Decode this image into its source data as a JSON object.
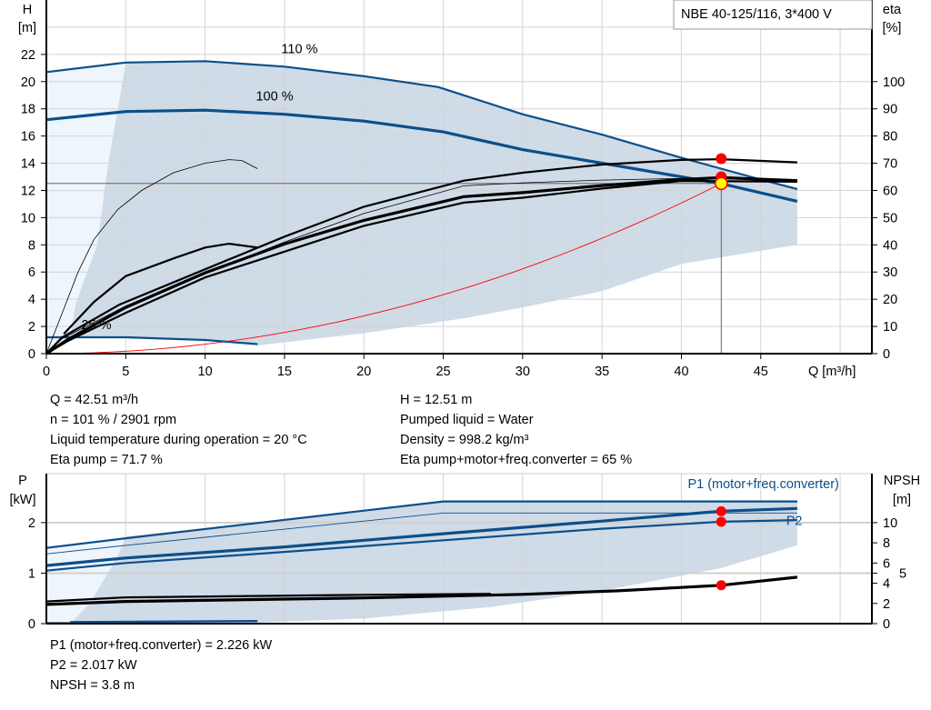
{
  "title_box": "NBE 40-125/116, 3*400 V",
  "colors": {
    "blue": "#0b4f8a",
    "band": "#cfdbe7",
    "band_light": "#eef5fc",
    "red": "#ff0000",
    "yellow": "#ffff00",
    "grid": "#d4d4d4"
  },
  "info_top": {
    "left": [
      "Q = 42.51 m³/h",
      "n = 101 % / 2901 rpm",
      "Liquid temperature during operation = 20 °C",
      "Eta pump = 71.7 %"
    ],
    "right": [
      "H = 12.51 m",
      "Pumped liquid = Water",
      "Density = 998.2 kg/m³",
      "Eta pump+motor+freq.converter = 65 %"
    ]
  },
  "info_bottom": [
    "P1 (motor+freq.converter) = 2.226 kW",
    "P2 = 2.017 kW",
    "NPSH = 3.8 m"
  ],
  "chart_data": [
    {
      "type": "line",
      "xlabel": "Q [m³/h]",
      "ylabel": [
        "H",
        "[m]"
      ],
      "y2label": [
        "eta",
        "[%]"
      ],
      "xlim": [
        0,
        52
      ],
      "ylim": [
        0,
        26
      ],
      "y2lim": [
        0,
        130
      ],
      "xticks": [
        0,
        5,
        10,
        15,
        20,
        25,
        30,
        35,
        40,
        45
      ],
      "yticks": [
        0,
        2,
        4,
        6,
        8,
        10,
        12,
        14,
        16,
        18,
        20,
        22
      ],
      "y2ticks": [
        0,
        10,
        20,
        30,
        40,
        50,
        60,
        70,
        80,
        90,
        100
      ],
      "grid": true,
      "curve_labels": [
        {
          "text": "110 %",
          "q": 14.8,
          "h": 22.1
        },
        {
          "text": "100 %",
          "q": 13.2,
          "h": 18.6
        },
        {
          "text": "25 %",
          "q": 2.2,
          "h": 1.8
        }
      ],
      "band": [
        [
          5,
          21.4
        ],
        [
          10,
          21.5
        ],
        [
          15,
          21.1
        ],
        [
          20,
          20.4
        ],
        [
          24.7,
          19.6
        ],
        [
          30,
          17.6
        ],
        [
          35,
          16.1
        ],
        [
          40,
          14.4
        ],
        [
          45,
          12.8
        ],
        [
          47.3,
          12.1
        ],
        [
          47.3,
          8.0
        ],
        [
          40,
          6.6
        ],
        [
          35,
          4.6
        ],
        [
          30,
          3.4
        ],
        [
          26.3,
          2.6
        ],
        [
          20,
          1.5
        ],
        [
          13.3,
          0.6
        ],
        [
          10,
          1.0
        ],
        [
          5,
          1.2
        ],
        [
          1.5,
          1.2
        ],
        [
          1.85,
          3.7
        ],
        [
          3.2,
          8
        ],
        [
          3.9,
          14
        ],
        [
          4.8,
          20
        ]
      ],
      "band_light": [
        [
          0,
          0
        ],
        [
          0,
          20.7
        ],
        [
          5,
          21.4
        ],
        [
          4.8,
          20
        ],
        [
          3.9,
          14
        ],
        [
          3.2,
          8
        ],
        [
          1.85,
          3.7
        ],
        [
          1.5,
          1.2
        ],
        [
          0.3,
          0.5
        ]
      ],
      "head_curves": [
        {
          "name": "110 %",
          "width": 2.2,
          "points": [
            [
              0,
              20.7
            ],
            [
              5,
              21.4
            ],
            [
              10,
              21.5
            ],
            [
              15,
              21.1
            ],
            [
              20,
              20.4
            ],
            [
              24.7,
              19.6
            ],
            [
              30,
              17.6
            ],
            [
              35,
              16.1
            ],
            [
              40,
              14.4
            ],
            [
              45,
              12.8
            ],
            [
              47.3,
              12.1
            ]
          ]
        },
        {
          "name": "100 %",
          "width": 3.2,
          "points": [
            [
              0,
              17.2
            ],
            [
              5,
              17.8
            ],
            [
              10,
              17.9
            ],
            [
              15,
              17.6
            ],
            [
              20,
              17.1
            ],
            [
              25,
              16.3
            ],
            [
              30,
              15.0
            ],
            [
              35,
              14.0
            ],
            [
              40,
              13.0
            ],
            [
              42.5,
              12.5
            ],
            [
              47.3,
              11.2
            ]
          ]
        },
        {
          "name": "25 %",
          "width": 2.2,
          "points": [
            [
              0,
              1.2
            ],
            [
              5,
              1.2
            ],
            [
              10,
              1.0
            ],
            [
              13.3,
              0.7
            ]
          ]
        }
      ],
      "eta_curves": [
        {
          "width": 2.2,
          "points": [
            [
              0,
              0
            ],
            [
              1,
              6
            ],
            [
              4.6,
              18
            ],
            [
              10,
              31
            ],
            [
              15,
              43
            ],
            [
              20,
              54
            ],
            [
              26.3,
              63.6
            ],
            [
              30,
              66.5
            ],
            [
              35,
              69.5
            ],
            [
              40,
              71.2
            ],
            [
              42.5,
              71.5
            ],
            [
              47.3,
              70.3
            ]
          ]
        },
        {
          "width": 0.8,
          "points": [
            [
              0,
              0
            ],
            [
              1,
              5.5
            ],
            [
              5,
              17.5
            ],
            [
              10,
              29.5
            ],
            [
              15,
              41
            ],
            [
              20,
              51.5
            ],
            [
              26.3,
              61.7
            ],
            [
              30,
              62.8
            ],
            [
              35,
              63.8
            ],
            [
              42.5,
              64.7
            ],
            [
              47.3,
              64
            ]
          ]
        },
        {
          "width": 3.2,
          "points": [
            [
              0,
              0
            ],
            [
              1.3,
              5
            ],
            [
              5,
              17
            ],
            [
              10,
              29.7
            ],
            [
              15,
              40.3
            ],
            [
              20,
              49
            ],
            [
              26.3,
              57.7
            ],
            [
              30,
              59.2
            ],
            [
              35,
              61.8
            ],
            [
              40,
              64
            ],
            [
              42.5,
              64.7
            ],
            [
              47.3,
              63.6
            ]
          ]
        },
        {
          "width": 2.2,
          "points": [
            [
              0,
              0
            ],
            [
              1.3,
              4.5
            ],
            [
              5,
              15
            ],
            [
              10,
              28
            ],
            [
              15,
              37.5
            ],
            [
              20,
              47
            ],
            [
              26.3,
              55.5
            ],
            [
              30,
              57.3
            ],
            [
              35,
              60.7
            ],
            [
              40,
              63.5
            ],
            [
              47.3,
              63.2
            ]
          ]
        },
        {
          "width": 0.8,
          "points": [
            [
              0,
              0
            ],
            [
              1,
              15
            ],
            [
              2,
              30
            ],
            [
              3,
              42
            ],
            [
              4.5,
              53
            ],
            [
              6,
              60
            ],
            [
              8,
              66.5
            ],
            [
              10,
              70
            ],
            [
              11.5,
              71.3
            ],
            [
              12.3,
              71
            ],
            [
              13.3,
              68
            ]
          ]
        },
        {
          "width": 2.2,
          "points": [
            [
              1.1,
              7.3
            ],
            [
              3,
              19
            ],
            [
              5,
              28.5
            ],
            [
              8,
              35
            ],
            [
              10,
              39
            ],
            [
              11.5,
              40.4
            ],
            [
              13.3,
              39
            ]
          ]
        }
      ],
      "system_curve": {
        "color": "#ff0000",
        "duty_q": 42.51,
        "duty_h": 12.51
      },
      "duty_points": [
        {
          "axis": "eta",
          "q": 42.51,
          "value": 71.7
        },
        {
          "axis": "eta",
          "q": 42.51,
          "value": 65
        },
        {
          "axis": "head",
          "q": 42.51,
          "value": 12.51
        }
      ]
    },
    {
      "type": "line",
      "ylabel": [
        "P",
        "[kW]"
      ],
      "y2label": [
        "NPSH",
        "[m]"
      ],
      "xlim": [
        0,
        52
      ],
      "ylim": [
        0,
        2.97
      ],
      "y2lim": [
        0,
        14.85
      ],
      "xticks": [
        0,
        5,
        10,
        15,
        20,
        25,
        30,
        35,
        40,
        45
      ],
      "yticks": [
        0,
        1,
        2
      ],
      "y2ticks": [
        0,
        2,
        4,
        5,
        6,
        8,
        10
      ],
      "grid": true,
      "series_labels": [
        {
          "text": "P1 (motor+freq.converter)",
          "q": 40.4,
          "p": 2.68
        },
        {
          "text": "P2",
          "q": 46.6,
          "p": 1.95
        }
      ],
      "band": [
        [
          5,
          1.72
        ],
        [
          25,
          2.42
        ],
        [
          47.3,
          2.42
        ],
        [
          47.3,
          1.55
        ],
        [
          42.5,
          1.1
        ],
        [
          35,
          0.65
        ],
        [
          28,
          0.33
        ],
        [
          20,
          0.1
        ],
        [
          13.3,
          0.02
        ],
        [
          1.5,
          0.0
        ],
        [
          2.7,
          0.38
        ],
        [
          4.4,
          1.28
        ]
      ],
      "band_light": [
        [
          0,
          0
        ],
        [
          0,
          1.5
        ],
        [
          5,
          1.72
        ],
        [
          4.4,
          1.28
        ],
        [
          2.7,
          0.38
        ],
        [
          1.5,
          0
        ]
      ],
      "power_curves": [
        {
          "width": 2.2,
          "points": [
            [
              0,
              1.5
            ],
            [
              5,
              1.69
            ],
            [
              25,
              2.42
            ],
            [
              47.3,
              2.42
            ]
          ]
        },
        {
          "width": 0.9,
          "points": [
            [
              0,
              1.38
            ],
            [
              5,
              1.55
            ],
            [
              25,
              2.19
            ],
            [
              47.3,
              2.19
            ]
          ]
        },
        {
          "width": 3.2,
          "points": [
            [
              0,
              1.15
            ],
            [
              5,
              1.3
            ],
            [
              15,
              1.52
            ],
            [
              25,
              1.78
            ],
            [
              35,
              2.03
            ],
            [
              42.5,
              2.226
            ],
            [
              47.3,
              2.28
            ]
          ]
        },
        {
          "width": 2.2,
          "points": [
            [
              0,
              1.05
            ],
            [
              5,
              1.2
            ],
            [
              15,
              1.42
            ],
            [
              25,
              1.65
            ],
            [
              35,
              1.88
            ],
            [
              42.5,
              2.017
            ],
            [
              47.3,
              2.05
            ]
          ]
        },
        {
          "width": 2.4,
          "points": [
            [
              1.5,
              0.03
            ],
            [
              13.3,
              0.05
            ]
          ]
        }
      ],
      "npsh_curves": [
        {
          "width": 3.2,
          "points": [
            [
              0,
              1.9
            ],
            [
              5,
              2.2
            ],
            [
              20,
              2.55
            ],
            [
              30,
              2.9
            ],
            [
              36,
              3.25
            ],
            [
              42.5,
              3.8
            ],
            [
              47.3,
              4.6
            ]
          ]
        },
        {
          "width": 2.2,
          "points": [
            [
              0,
              2.2
            ],
            [
              5,
              2.6
            ],
            [
              20,
              2.85
            ],
            [
              28,
              2.95
            ]
          ]
        },
        {
          "width": 0.9,
          "points": [
            [
              0,
              0.1
            ],
            [
              1.5,
              0.1
            ]
          ]
        }
      ],
      "duty_points": [
        {
          "axis": "power",
          "q": 42.51,
          "value": 2.226
        },
        {
          "axis": "power",
          "q": 42.51,
          "value": 2.017
        },
        {
          "axis": "npsh",
          "q": 42.51,
          "value": 3.8
        }
      ]
    }
  ]
}
